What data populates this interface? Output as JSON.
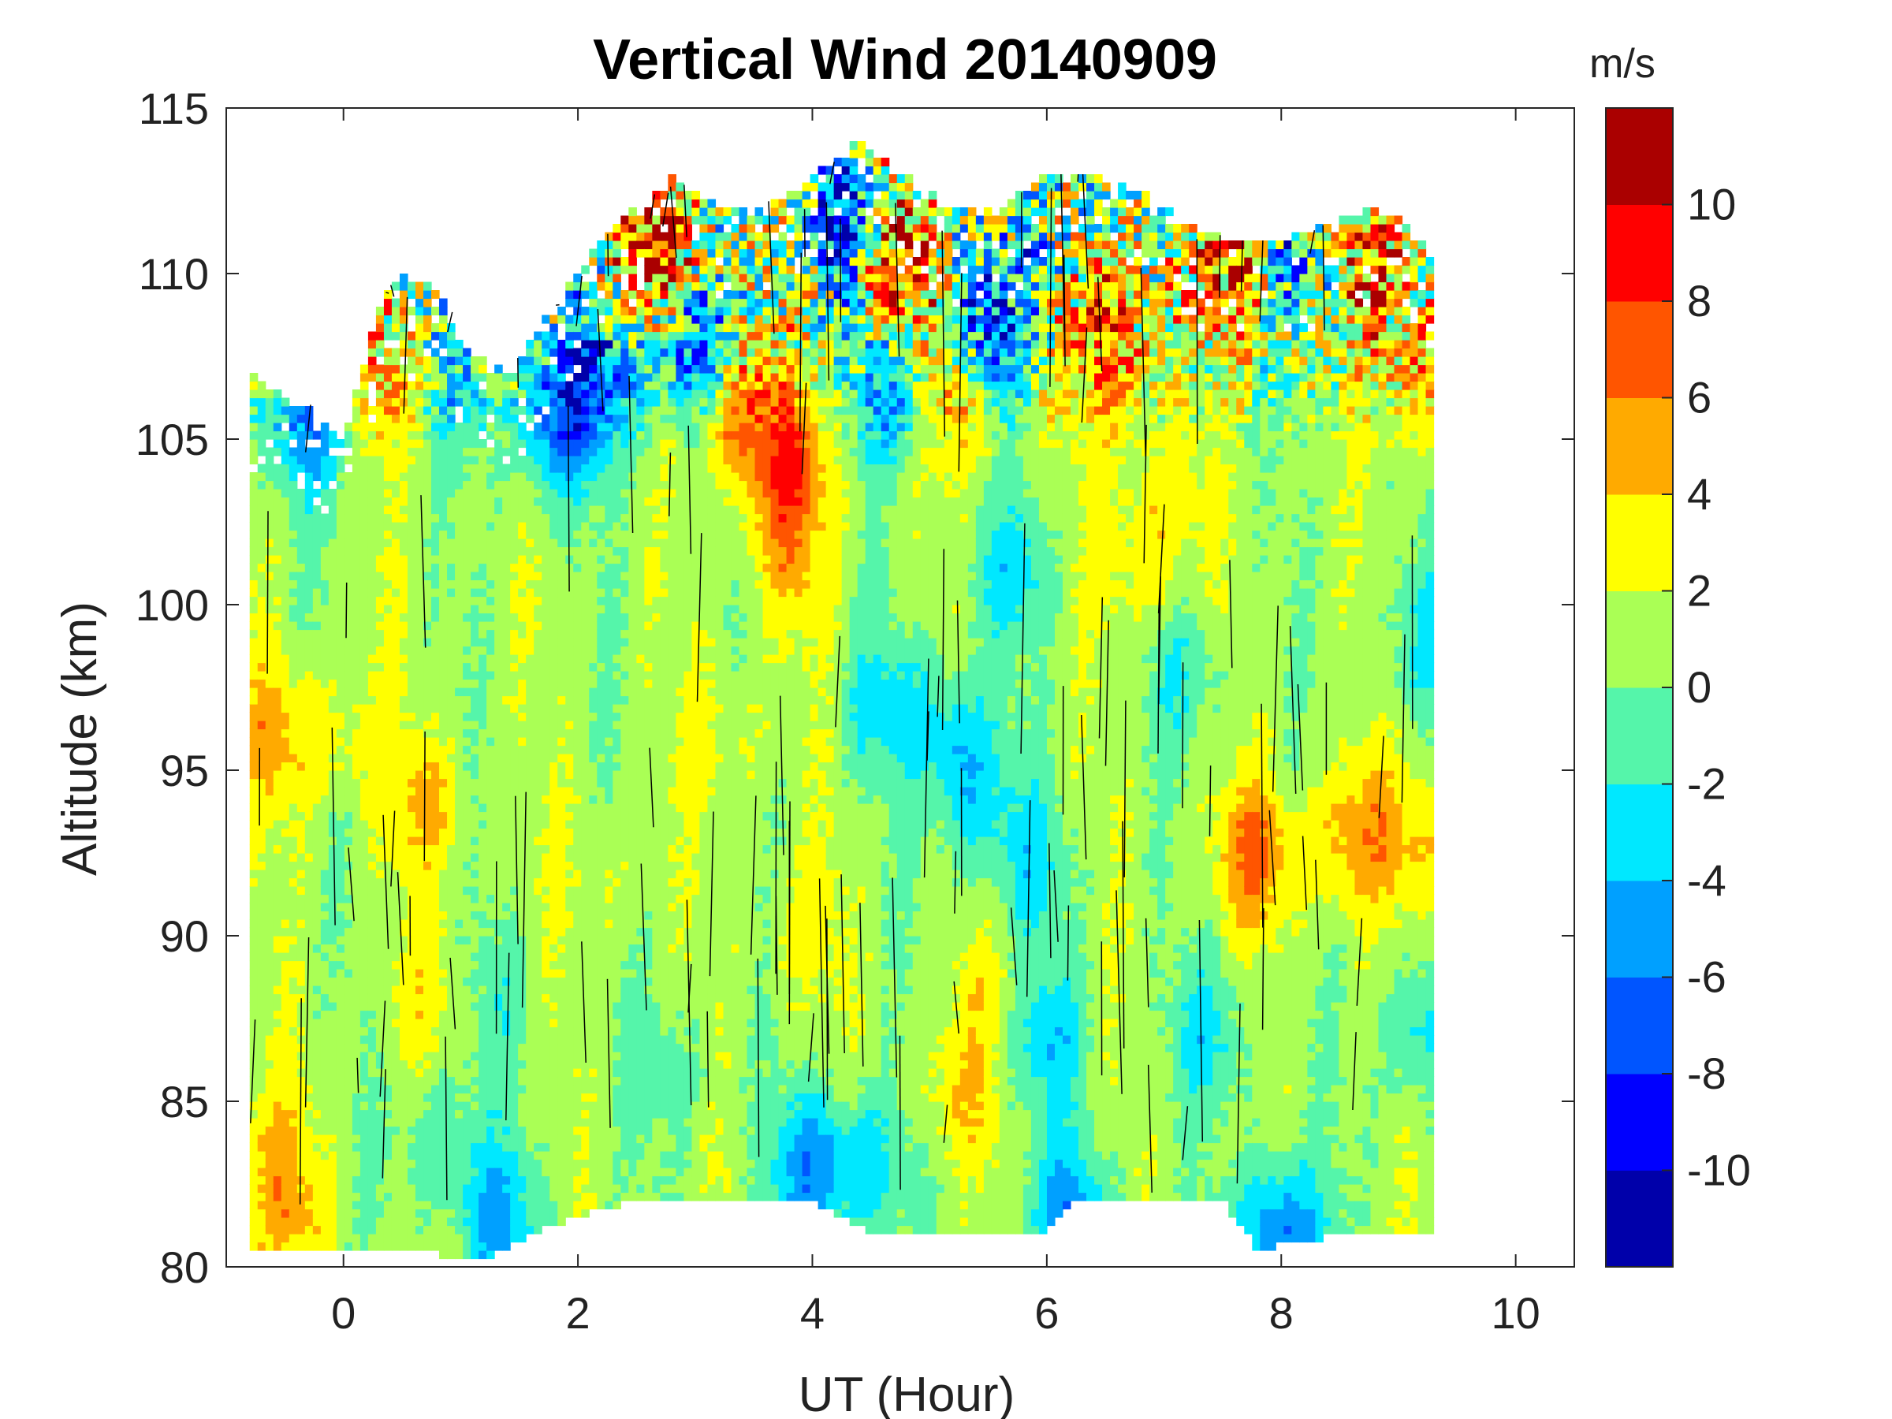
{
  "chart_data": {
    "type": "heatmap",
    "subtype": "filled-contour",
    "title": "Vertical Wind 20140909",
    "xlabel": "UT (Hour)",
    "ylabel": "Altitude (km)",
    "xlim": [
      -1,
      10.5
    ],
    "ylim": [
      80,
      115
    ],
    "xticks": [
      0,
      2,
      4,
      6,
      8,
      10
    ],
    "yticks": [
      80,
      85,
      90,
      95,
      100,
      105,
      110,
      115
    ],
    "data_x_range": [
      -0.8,
      9.3
    ],
    "colorbar": {
      "label": "m/s",
      "range": [
        -12,
        12
      ],
      "levels": [
        -12,
        -10,
        -8,
        -6,
        -4,
        -2,
        0,
        2,
        4,
        6,
        8,
        10,
        12
      ],
      "ticks": [
        -10,
        -8,
        -6,
        -4,
        -2,
        0,
        2,
        4,
        6,
        8,
        10
      ],
      "colors": [
        "#0000aa",
        "#0000ff",
        "#0055ff",
        "#00a0ff",
        "#00e8ff",
        "#55f5aa",
        "#aaff55",
        "#ffff00",
        "#ffaa00",
        "#ff5500",
        "#ff0000",
        "#aa0000"
      ]
    },
    "features": [
      {
        "x": 0.0,
        "y": 96,
        "value": 3.5
      },
      {
        "x": -0.6,
        "y": 96,
        "value": 5.0
      },
      {
        "x": 0.7,
        "y": 94,
        "value": 4.5
      },
      {
        "x": 0.4,
        "y": 107,
        "value": 5.5
      },
      {
        "x": 0.7,
        "y": 88,
        "value": 3.0
      },
      {
        "x": -0.6,
        "y": 84,
        "value": 3.0
      },
      {
        "x": -0.5,
        "y": 81.5,
        "value": 5.0
      },
      {
        "x": 1.3,
        "y": 88,
        "value": -1.0
      },
      {
        "x": 2.8,
        "y": 86,
        "value": -1.5
      },
      {
        "x": 3.3,
        "y": 96,
        "value": 3.0
      },
      {
        "x": 3.8,
        "y": 101,
        "value": 4.0
      },
      {
        "x": 4.6,
        "y": 97,
        "value": -3.0
      },
      {
        "x": 5.2,
        "y": 96,
        "value": -4.0
      },
      {
        "x": 5.4,
        "y": 94,
        "value": -3.0
      },
      {
        "x": 5.9,
        "y": 92,
        "value": -2.5
      },
      {
        "x": 6.0,
        "y": 87,
        "value": -4.0
      },
      {
        "x": 5.5,
        "y": 88,
        "value": 3.0
      },
      {
        "x": 5.2,
        "y": 85,
        "value": 4.0
      },
      {
        "x": 7.0,
        "y": 103,
        "value": 3.5
      },
      {
        "x": 6.8,
        "y": 101,
        "value": 3.5
      },
      {
        "x": 6.6,
        "y": 107,
        "value": 5.5
      },
      {
        "x": 7.4,
        "y": 87,
        "value": -3.0
      },
      {
        "x": 7.8,
        "y": 92.5,
        "value": 7.0
      },
      {
        "x": 8.6,
        "y": 93,
        "value": 6.0
      },
      {
        "x": 9.2,
        "y": 93,
        "value": 4.5
      },
      {
        "x": 9.2,
        "y": 87,
        "value": -3.5
      },
      {
        "x": 9.2,
        "y": 99,
        "value": -2.5
      },
      {
        "x": 4.5,
        "y": 83,
        "value": -3.5
      },
      {
        "x": 4.0,
        "y": 83,
        "value": -6.0
      },
      {
        "x": 7.2,
        "y": 98,
        "value": -2.0
      },
      {
        "x": 5.7,
        "y": 101,
        "value": -3.0
      },
      {
        "x": 3.0,
        "y": 108,
        "value": -9.0
      },
      {
        "x": 2.2,
        "y": 107,
        "value": -8.0
      },
      {
        "x": 2.7,
        "y": 110.5,
        "value": 11.0
      },
      {
        "x": 3.4,
        "y": 106,
        "value": 8.0
      },
      {
        "x": 3.8,
        "y": 104,
        "value": 8.0
      },
      {
        "x": 4.3,
        "y": 111.5,
        "value": -10.0
      },
      {
        "x": 4.7,
        "y": 110.5,
        "value": 11.0
      },
      {
        "x": 5.5,
        "y": 108.5,
        "value": -9.0
      },
      {
        "x": 5.2,
        "y": 106.5,
        "value": 7.0
      },
      {
        "x": 4.7,
        "y": 106.5,
        "value": -6.0
      },
      {
        "x": 6.0,
        "y": 110.5,
        "value": -4.0
      },
      {
        "x": 6.4,
        "y": 109,
        "value": 6.0
      },
      {
        "x": 7.6,
        "y": 110,
        "value": 8.0
      },
      {
        "x": 8.8,
        "y": 110.5,
        "value": 9.0
      },
      {
        "x": 8.2,
        "y": 110.5,
        "value": -6.0
      },
      {
        "x": 9.2,
        "y": 107,
        "value": 6.0
      },
      {
        "x": -0.3,
        "y": 105.5,
        "value": -6.0
      },
      {
        "x": 1.0,
        "y": 107,
        "value": -4.0
      },
      {
        "x": 1.8,
        "y": 105.5,
        "value": -7.0
      },
      {
        "x": 8.0,
        "y": 81,
        "value": -8.0
      },
      {
        "x": 6.2,
        "y": 81.5,
        "value": -6.0
      },
      {
        "x": 1.3,
        "y": 81.5,
        "value": -5.0
      },
      {
        "x": 0.8,
        "y": 84,
        "value": -2.0
      },
      {
        "x": 3.9,
        "y": 90,
        "value": 3.0
      },
      {
        "x": 2.2,
        "y": 92,
        "value": 2.5
      }
    ]
  }
}
